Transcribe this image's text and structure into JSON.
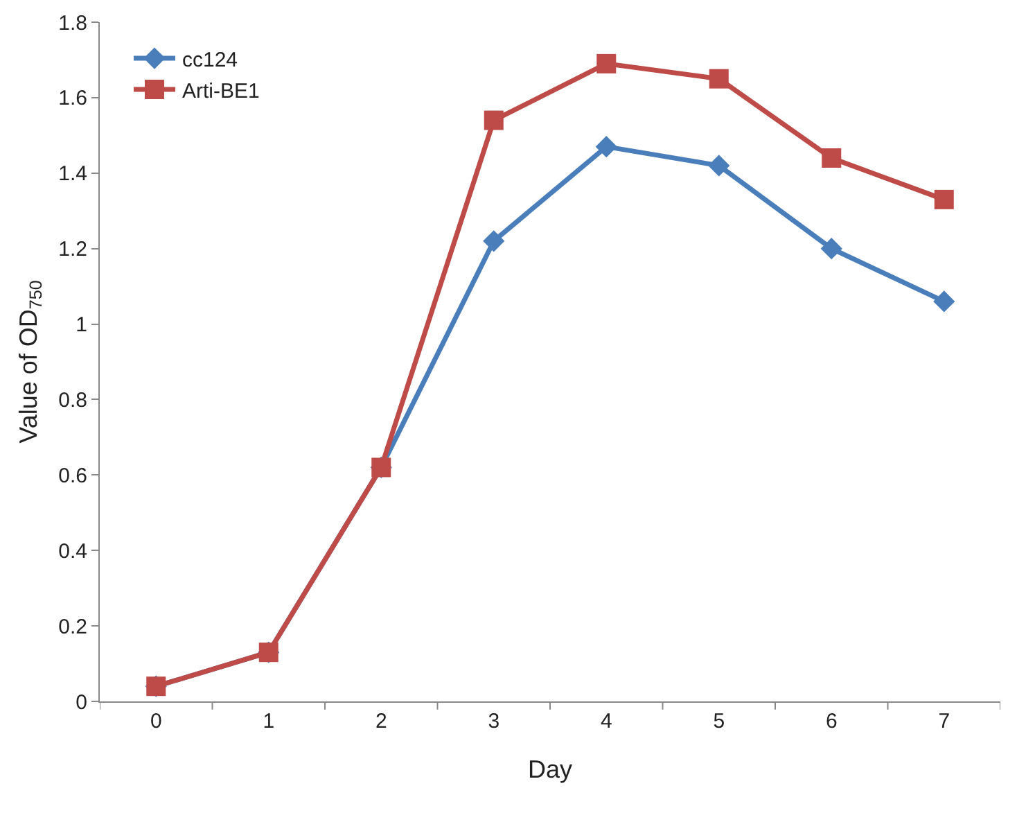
{
  "chart_data": {
    "type": "line",
    "xlabel": "Day",
    "ylabel": "Value of OD$_{750}$",
    "categories": [
      "0",
      "1",
      "2",
      "3",
      "4",
      "5",
      "6",
      "7"
    ],
    "series": [
      {
        "name": "cc124",
        "color": "#4a7ebb",
        "marker": "diamond",
        "values": [
          0.04,
          0.13,
          0.62,
          1.22,
          1.47,
          1.42,
          1.2,
          1.06
        ]
      },
      {
        "name": "Arti-BE1",
        "color": "#be4b48",
        "marker": "square",
        "values": [
          0.04,
          0.13,
          0.62,
          1.54,
          1.69,
          1.65,
          1.44,
          1.33
        ]
      }
    ],
    "ylim": [
      0,
      1.8
    ],
    "yticks": [
      0,
      0.2,
      0.4,
      0.6,
      0.8,
      1,
      1.2,
      1.4,
      1.6,
      1.8
    ],
    "grid": false,
    "legend": "top left",
    "line_style": "solid"
  }
}
